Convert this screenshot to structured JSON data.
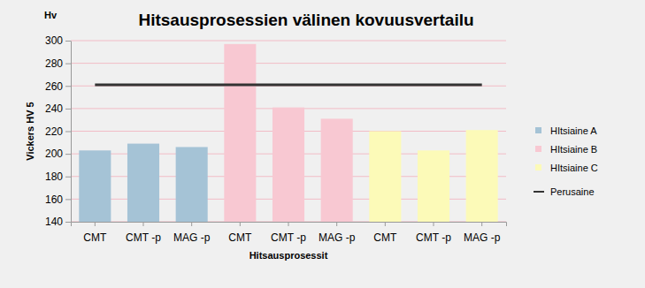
{
  "chart_data": {
    "type": "bar",
    "title": "Hitsausprosessien välinen kovuusvertailu",
    "x_label": "Hitsausprosessit",
    "y_label": "Vickers HV 5",
    "annotations": [
      "Hv"
    ],
    "categories": [
      "CMT",
      "CMT -p",
      "MAG -p",
      "CMT",
      "CMT -p",
      "MAG -p",
      "CMT",
      "CMT -p",
      "MAG -p"
    ],
    "series": [
      {
        "name": "HItsiaine A",
        "type": "bar",
        "color": "#a5c3d6",
        "values": [
          203,
          209,
          206,
          null,
          null,
          null,
          null,
          null,
          null
        ]
      },
      {
        "name": "HItsiaine B",
        "type": "bar",
        "color": "#f8c8d2",
        "values": [
          null,
          null,
          null,
          297,
          241,
          231,
          null,
          null,
          null
        ]
      },
      {
        "name": "HItsiaine C",
        "type": "bar",
        "color": "#fcfab8",
        "values": [
          null,
          null,
          null,
          null,
          null,
          null,
          220,
          203,
          221
        ]
      },
      {
        "name": "Perusaine",
        "type": "line",
        "color": "#333333",
        "line_style": "solid",
        "values": [
          261,
          261,
          261,
          261,
          261,
          261,
          261,
          261,
          261
        ]
      }
    ],
    "ylim": [
      140,
      300
    ],
    "yticks": [
      140,
      160,
      180,
      200,
      220,
      240,
      260,
      280,
      300
    ],
    "grid": true,
    "legend": "right"
  }
}
